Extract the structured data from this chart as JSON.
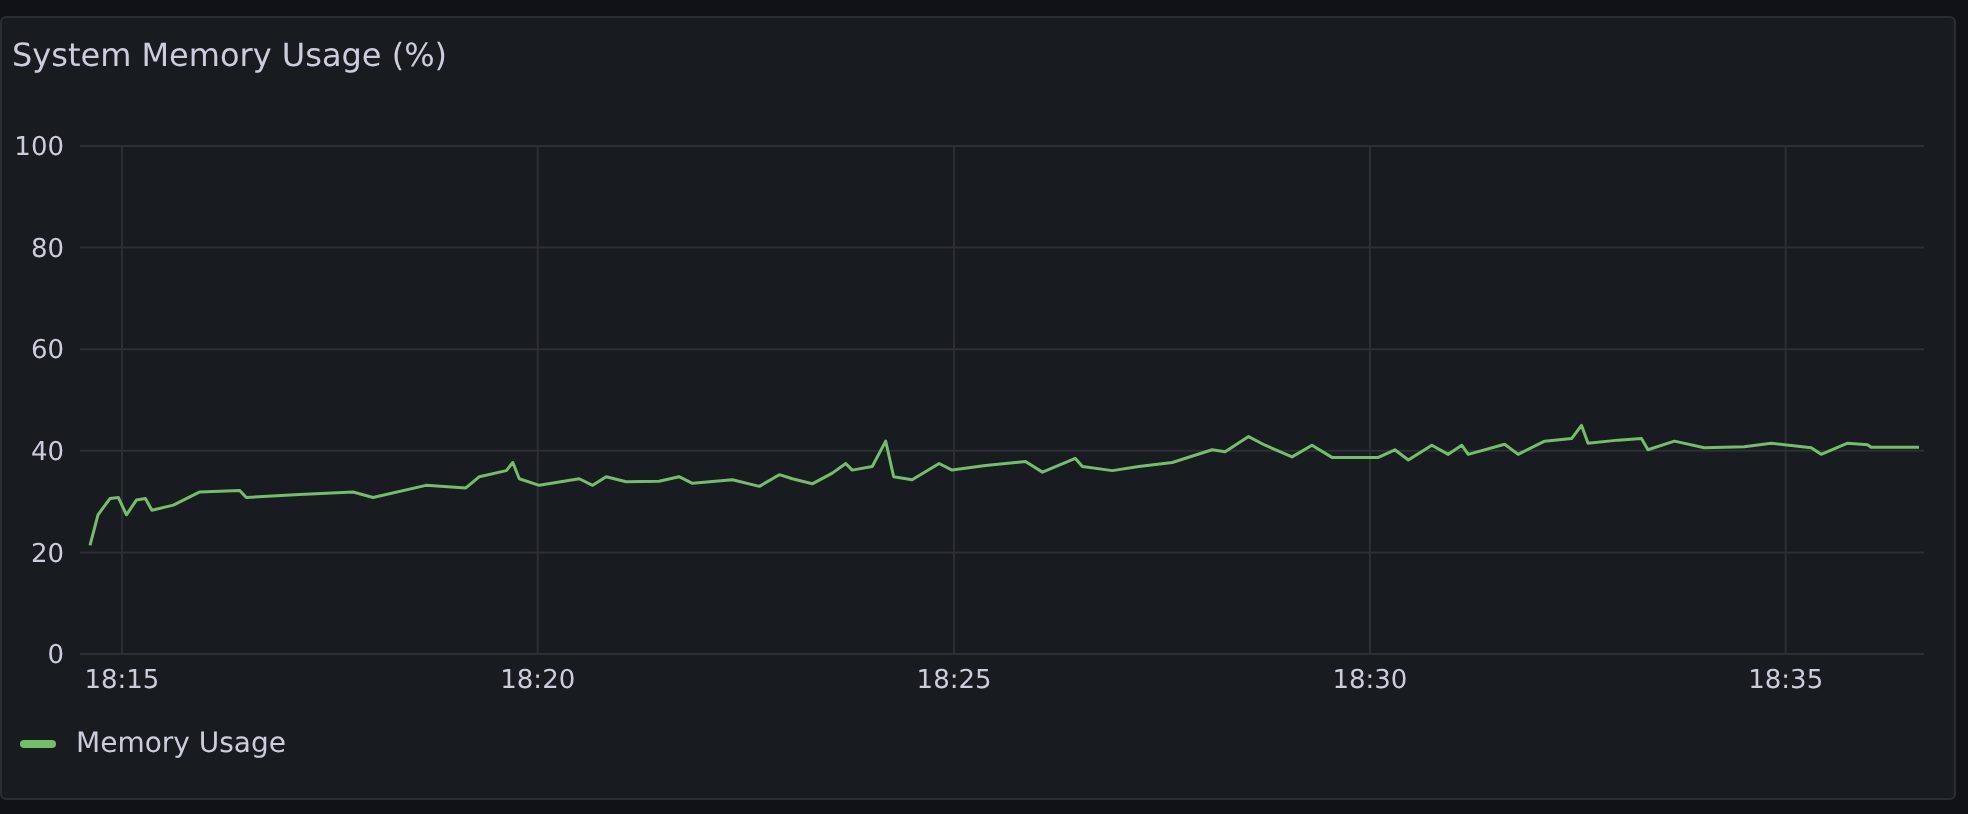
{
  "chart_data": {
    "type": "line",
    "title": "System Memory Usage (%)",
    "xlim": [
      18.2416,
      18.611
    ],
    "xticks": [
      {
        "value": 18.25,
        "label": "18:15"
      },
      {
        "value": 18.3333,
        "label": "18:20"
      },
      {
        "value": 18.4167,
        "label": "18:25"
      },
      {
        "value": 18.5,
        "label": "18:30"
      },
      {
        "value": 18.5833,
        "label": "18:35"
      }
    ],
    "ylim": [
      0,
      100
    ],
    "yticks": [
      0,
      20,
      40,
      60,
      80,
      100
    ],
    "grid": true,
    "legend": "bottom left",
    "marker": "none",
    "line_style": "solid",
    "series": [
      {
        "name": "Memory Usage",
        "color": "#73bf69",
        "x": [
          18.2436,
          18.2452,
          18.2476,
          18.2493,
          18.2509,
          18.2529,
          18.2547,
          18.256,
          18.2603,
          18.2656,
          18.2736,
          18.2749,
          18.2856,
          18.2963,
          18.3003,
          18.3109,
          18.3189,
          18.3216,
          18.327,
          18.3283,
          18.3296,
          18.3336,
          18.3416,
          18.3443,
          18.347,
          18.351,
          18.3576,
          18.3616,
          18.3643,
          18.3723,
          18.3777,
          18.3817,
          18.3843,
          18.3883,
          18.3923,
          18.395,
          18.3963,
          18.4003,
          18.403,
          18.4046,
          18.4083,
          18.4137,
          18.4163,
          18.423,
          18.431,
          18.4344,
          18.441,
          18.4424,
          18.4484,
          18.4537,
          18.4604,
          18.4684,
          18.471,
          18.4757,
          18.479,
          18.4844,
          18.4884,
          18.4924,
          18.5017,
          18.505,
          18.5077,
          18.5124,
          18.5157,
          18.5184,
          18.5197,
          18.527,
          18.5297,
          18.535,
          18.5404,
          18.5424,
          18.5437,
          18.5497,
          18.5544,
          18.5557,
          18.561,
          18.567,
          18.575,
          18.5804,
          18.5884,
          18.5904,
          18.5957,
          18.5997,
          18.6004,
          18.61
        ],
        "values": [
          21.4,
          27.4,
          30.6,
          30.8,
          27.4,
          30.3,
          30.6,
          28.3,
          29.3,
          31.9,
          32.2,
          30.8,
          31.4,
          31.9,
          30.8,
          33.2,
          32.7,
          34.9,
          36.1,
          37.7,
          34.5,
          33.2,
          34.5,
          33.2,
          34.9,
          33.9,
          34.0,
          34.9,
          33.6,
          34.3,
          33.0,
          35.3,
          34.5,
          33.5,
          35.6,
          37.5,
          36.2,
          36.9,
          41.9,
          34.9,
          34.3,
          37.5,
          36.2,
          37.1,
          37.9,
          35.8,
          38.5,
          36.9,
          36.1,
          36.9,
          37.7,
          40.2,
          39.8,
          42.8,
          41.1,
          38.8,
          41.1,
          38.7,
          38.7,
          40.2,
          38.2,
          41.1,
          39.3,
          41.1,
          39.3,
          41.3,
          39.3,
          41.9,
          42.4,
          45.0,
          41.5,
          42.1,
          42.4,
          40.2,
          41.9,
          40.6,
          40.8,
          41.5,
          40.6,
          39.3,
          41.5,
          41.2,
          40.7,
          40.7
        ]
      }
    ]
  }
}
